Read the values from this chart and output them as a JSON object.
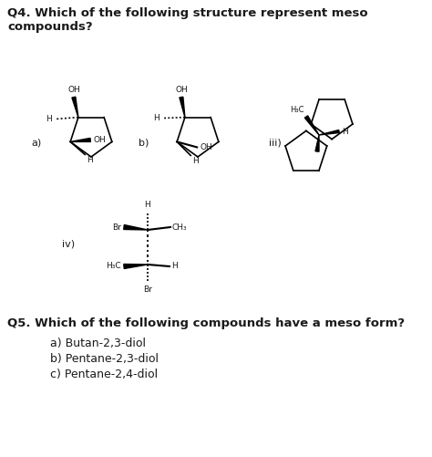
{
  "background_color": "#ffffff",
  "title_q4": "Q4. Which of the following structure represent meso\ncompounds?",
  "title_q5": "Q5. Which of the following compounds have a meso form?",
  "q5_options": [
    "a) Butan-2,3-diol",
    "b) Pentane-2,3-diol",
    "c) Pentane-2,4-diol"
  ],
  "label_a": "a)",
  "label_b": "b)",
  "label_iii": "iii)",
  "label_iv": "iv)",
  "text_color": "#1a1a1a",
  "figsize": [
    4.74,
    5.01
  ],
  "dpi": 100
}
